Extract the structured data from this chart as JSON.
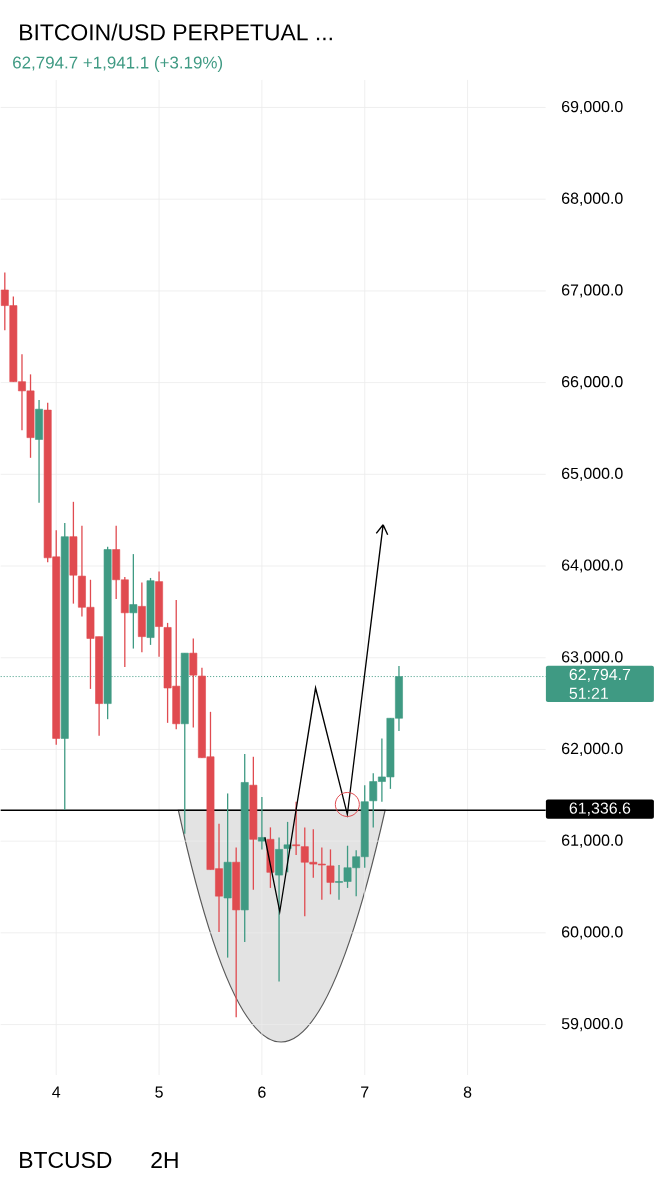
{
  "chart_data": {
    "type": "candlestick",
    "title": "BITCOIN/USD PERPETUAL ...",
    "subtitle": "62,794.7 +1,941.1 (+3.19%)",
    "x": [
      3.5,
      3.583,
      3.667,
      3.75,
      3.833,
      3.917,
      4.0,
      4.083,
      4.167,
      4.25,
      4.333,
      4.417,
      4.5,
      4.583,
      4.667,
      4.75,
      4.833,
      4.917,
      5.0,
      5.083,
      5.167,
      5.25,
      5.333,
      5.417,
      5.5,
      5.583,
      5.667,
      5.75,
      5.833,
      5.917,
      6.0,
      6.083,
      6.167,
      6.25,
      6.333,
      6.417,
      6.5,
      6.583,
      6.667,
      6.75,
      6.833,
      6.917,
      7.0,
      7.083,
      7.167,
      7.25,
      7.333
    ],
    "ohlc": [
      [
        67010,
        67200,
        66570,
        66840
      ],
      [
        66840,
        66940,
        66010,
        66010
      ],
      [
        66010,
        66310,
        65480,
        65910
      ],
      [
        65910,
        66090,
        65180,
        65400
      ],
      [
        65380,
        65810,
        64690,
        65710
      ],
      [
        65700,
        65780,
        64040,
        64090
      ],
      [
        64100,
        64390,
        62050,
        62120
      ],
      [
        62120,
        64470,
        61340,
        64320
      ],
      [
        64320,
        64700,
        63590,
        63900
      ],
      [
        63890,
        64440,
        63450,
        63550
      ],
      [
        63550,
        63850,
        62660,
        63210
      ],
      [
        63230,
        63230,
        62150,
        62500
      ],
      [
        62500,
        64210,
        62330,
        64180
      ],
      [
        64180,
        64440,
        63640,
        63850
      ],
      [
        63850,
        63880,
        62900,
        63490
      ],
      [
        63490,
        64130,
        63100,
        63580
      ],
      [
        63560,
        63820,
        63060,
        63230
      ],
      [
        63220,
        63870,
        63140,
        63840
      ],
      [
        63830,
        63940,
        63010,
        63340
      ],
      [
        63330,
        63380,
        62290,
        62670
      ],
      [
        62690,
        63630,
        62220,
        62280
      ],
      [
        62280,
        63050,
        61080,
        63050
      ],
      [
        63050,
        63210,
        62240,
        62810
      ],
      [
        62800,
        62890,
        61910,
        61910
      ],
      [
        61920,
        62410,
        60690,
        60690
      ],
      [
        60700,
        61190,
        60010,
        60400
      ],
      [
        60380,
        61520,
        59730,
        60770
      ],
      [
        60770,
        60930,
        59080,
        60250
      ],
      [
        60250,
        61950,
        59900,
        61640
      ],
      [
        61610,
        61920,
        60470,
        61020
      ],
      [
        61000,
        61480,
        60910,
        61040
      ],
      [
        61020,
        61150,
        60490,
        60660
      ],
      [
        60630,
        61040,
        59470,
        60910
      ],
      [
        60920,
        61210,
        60660,
        60960
      ],
      [
        60960,
        61430,
        60850,
        60950
      ],
      [
        60940,
        61150,
        60180,
        60770
      ],
      [
        60770,
        61130,
        60600,
        60750
      ],
      [
        60750,
        60930,
        60360,
        60740
      ],
      [
        60730,
        60910,
        60420,
        60550
      ],
      [
        60550,
        60740,
        60360,
        60560
      ],
      [
        60560,
        60950,
        60490,
        60710
      ],
      [
        60710,
        60900,
        60400,
        60830
      ],
      [
        60830,
        61610,
        60710,
        61430
      ],
      [
        61440,
        61740,
        61150,
        61650
      ],
      [
        61650,
        62120,
        61430,
        61700
      ],
      [
        61700,
        62340,
        61570,
        62340
      ],
      [
        62340,
        62910,
        62200,
        62794.7
      ]
    ],
    "colors": [
      "#e04b50",
      "#e04b50",
      "#e04b50",
      "#e04b50",
      "#3f9a83",
      "#e04b50",
      "#e04b50",
      "#3f9a83",
      "#e04b50",
      "#e04b50",
      "#e04b50",
      "#e04b50",
      "#3f9a83",
      "#e04b50",
      "#e04b50",
      "#3f9a83",
      "#e04b50",
      "#3f9a83",
      "#e04b50",
      "#e04b50",
      "#e04b50",
      "#3f9a83",
      "#e04b50",
      "#e04b50",
      "#e04b50",
      "#e04b50",
      "#3f9a83",
      "#e04b50",
      "#3f9a83",
      "#e04b50",
      "#3f9a83",
      "#e04b50",
      "#3f9a83",
      "#3f9a83",
      "#e04b50",
      "#e04b50",
      "#e04b50",
      "#e04b50",
      "#e04b50",
      "#3f9a83",
      "#3f9a83",
      "#3f9a83",
      "#3f9a83",
      "#3f9a83",
      "#3f9a83",
      "#3f9a83",
      "#3f9a83"
    ],
    "xlim": [
      3.46,
      8.76
    ],
    "xticks": [
      4,
      5,
      6,
      7,
      8
    ],
    "ylim": [
      58450,
      69300
    ],
    "yticks": [
      {
        "value": 59000,
        "label": "59,000.0"
      },
      {
        "value": 60000,
        "label": "60,000.0"
      },
      {
        "value": 61000,
        "label": "61,000.0"
      },
      {
        "value": 62000,
        "label": "62,000.0"
      },
      {
        "value": 63000,
        "label": "63,000.0"
      },
      {
        "value": 64000,
        "label": "64,000.0"
      },
      {
        "value": 65000,
        "label": "65,000.0"
      },
      {
        "value": 66000,
        "label": "66,000.0"
      },
      {
        "value": 67000,
        "label": "67,000.0"
      },
      {
        "value": 68000,
        "label": "68,000.0"
      },
      {
        "value": 69000,
        "label": "69,000.0"
      }
    ],
    "grid": true,
    "ref_lines": [
      {
        "axis": "y",
        "value": 62794.7,
        "label": "62,794.7",
        "color": "#3f9a83",
        "line_style": "dotted"
      },
      {
        "axis": "y",
        "value": 61336.6,
        "label": "61,336.6",
        "color": "#000000",
        "line_style": "solid"
      }
    ],
    "annotations": [
      "51:21",
      "BTCUSD",
      "2H"
    ]
  }
}
